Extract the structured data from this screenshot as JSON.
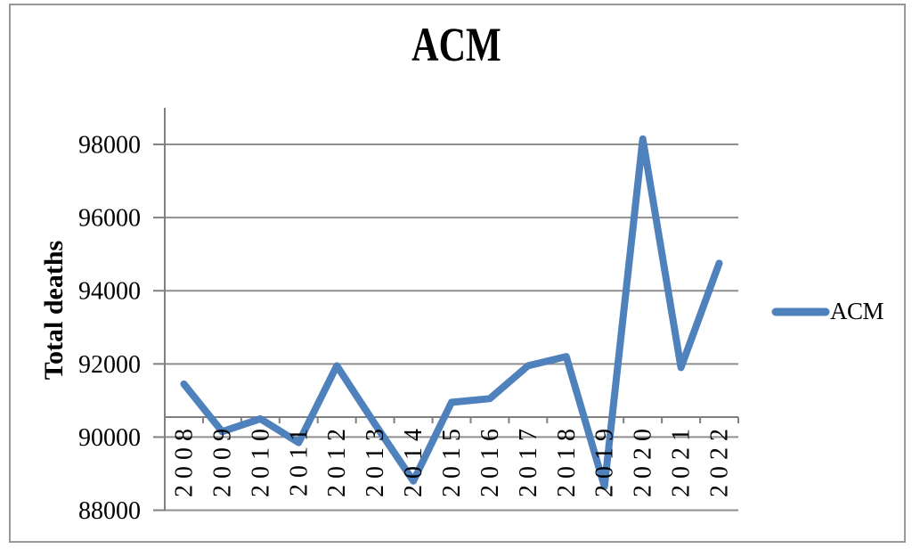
{
  "figure": {
    "title": "ACM"
  },
  "legend": {
    "label": "ACM"
  },
  "colors": {
    "series_line": "#4f81bd",
    "gridline": "#8f8f8f",
    "axis": "#808080",
    "text": "#000000",
    "figure_border": "#999999"
  },
  "chart_data": {
    "type": "line",
    "title": "ACM",
    "xlabel": "",
    "ylabel": "Total deaths",
    "categories": [
      "2008",
      "2009",
      "2010",
      "2011",
      "2012",
      "2013",
      "2014",
      "2015",
      "2016",
      "2017",
      "2018",
      "2019",
      "2020",
      "2021",
      "2022"
    ],
    "series": [
      {
        "name": "ACM",
        "color": "#4f81bd",
        "values": [
          91450,
          90150,
          90500,
          89850,
          91950,
          90350,
          88800,
          90950,
          91050,
          91950,
          92200,
          88650,
          98150,
          91900,
          94750
        ]
      }
    ],
    "ylim": [
      88000,
      99000
    ],
    "yticks": [
      88000,
      90000,
      92000,
      94000,
      96000,
      98000
    ],
    "grid": true,
    "gridlines": "horizontal-major",
    "category_axis_crosses_at": 90500,
    "x_tick_labels_rotation_deg": -90,
    "legend_position": "right"
  }
}
